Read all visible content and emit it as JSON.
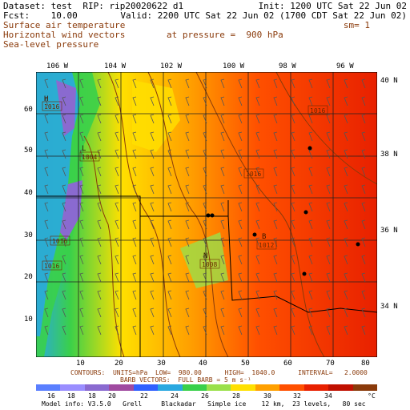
{
  "header": {
    "dataset_line": "Dataset: test  RIP: rip20020622 d1",
    "init_line": "Init: 1200 UTC Sat 22 Jun 02",
    "fcst_line": "Fcst:    10.00",
    "valid_line": "Valid: 2200 UTC Sat 22 Jun 02 (1700 CDT Sat 22 Jun 02)",
    "field1": "Surface air temperature",
    "field2": "Horizontal wind vectors",
    "field3": "Sea-level pressure",
    "pressure_label": "at pressure =  900 hPa",
    "sm_label": "sm= 1"
  },
  "map": {
    "top_lon_labels": [
      "106 W",
      "104 W",
      "102 W",
      "100 W",
      "98 W",
      "96 W"
    ],
    "right_lat_labels": [
      "40 N",
      "38 N",
      "36 N",
      "34 N"
    ],
    "left_grid_labels": [
      "60",
      "50",
      "40",
      "30",
      "20",
      "10"
    ],
    "bottom_grid_labels": [
      "10",
      "20",
      "30",
      "40",
      "50",
      "60",
      "70",
      "80"
    ],
    "pressure_labels": [
      "1016",
      "1004",
      "1016",
      "1016",
      "1016",
      "1008",
      "1012",
      "1016"
    ],
    "high_low_markers": [
      "H",
      "L",
      "B",
      "N"
    ]
  },
  "contour_info": {
    "line1": "CONTOURS:  UNITS=hPa  LOW=  980.00      HIGH=  1040.0      INTERVAL=   2.0000",
    "line2": "BARB VECTORS:  FULL BARB = 5 m s⁻¹"
  },
  "legend": {
    "labels": [
      "16",
      "18",
      "18",
      "20",
      "22",
      "24",
      "26",
      "28",
      "30",
      "32",
      "34"
    ],
    "unit": "°C",
    "colors": [
      "#5a7fff",
      "#9a8eff",
      "#8a6ad0",
      "#a04aa0",
      "#3060ff",
      "#2aa8e0",
      "#3ad04a",
      "#9ae04a",
      "#ffe000",
      "#ffa000",
      "#ff5000",
      "#e82000",
      "#c01000",
      "#8a3a0a"
    ]
  },
  "footer": {
    "model_info": "Model info: V3.5.0   Grell     Blackadar   Simple ice    12 km,  23 levels,   80 sec"
  }
}
